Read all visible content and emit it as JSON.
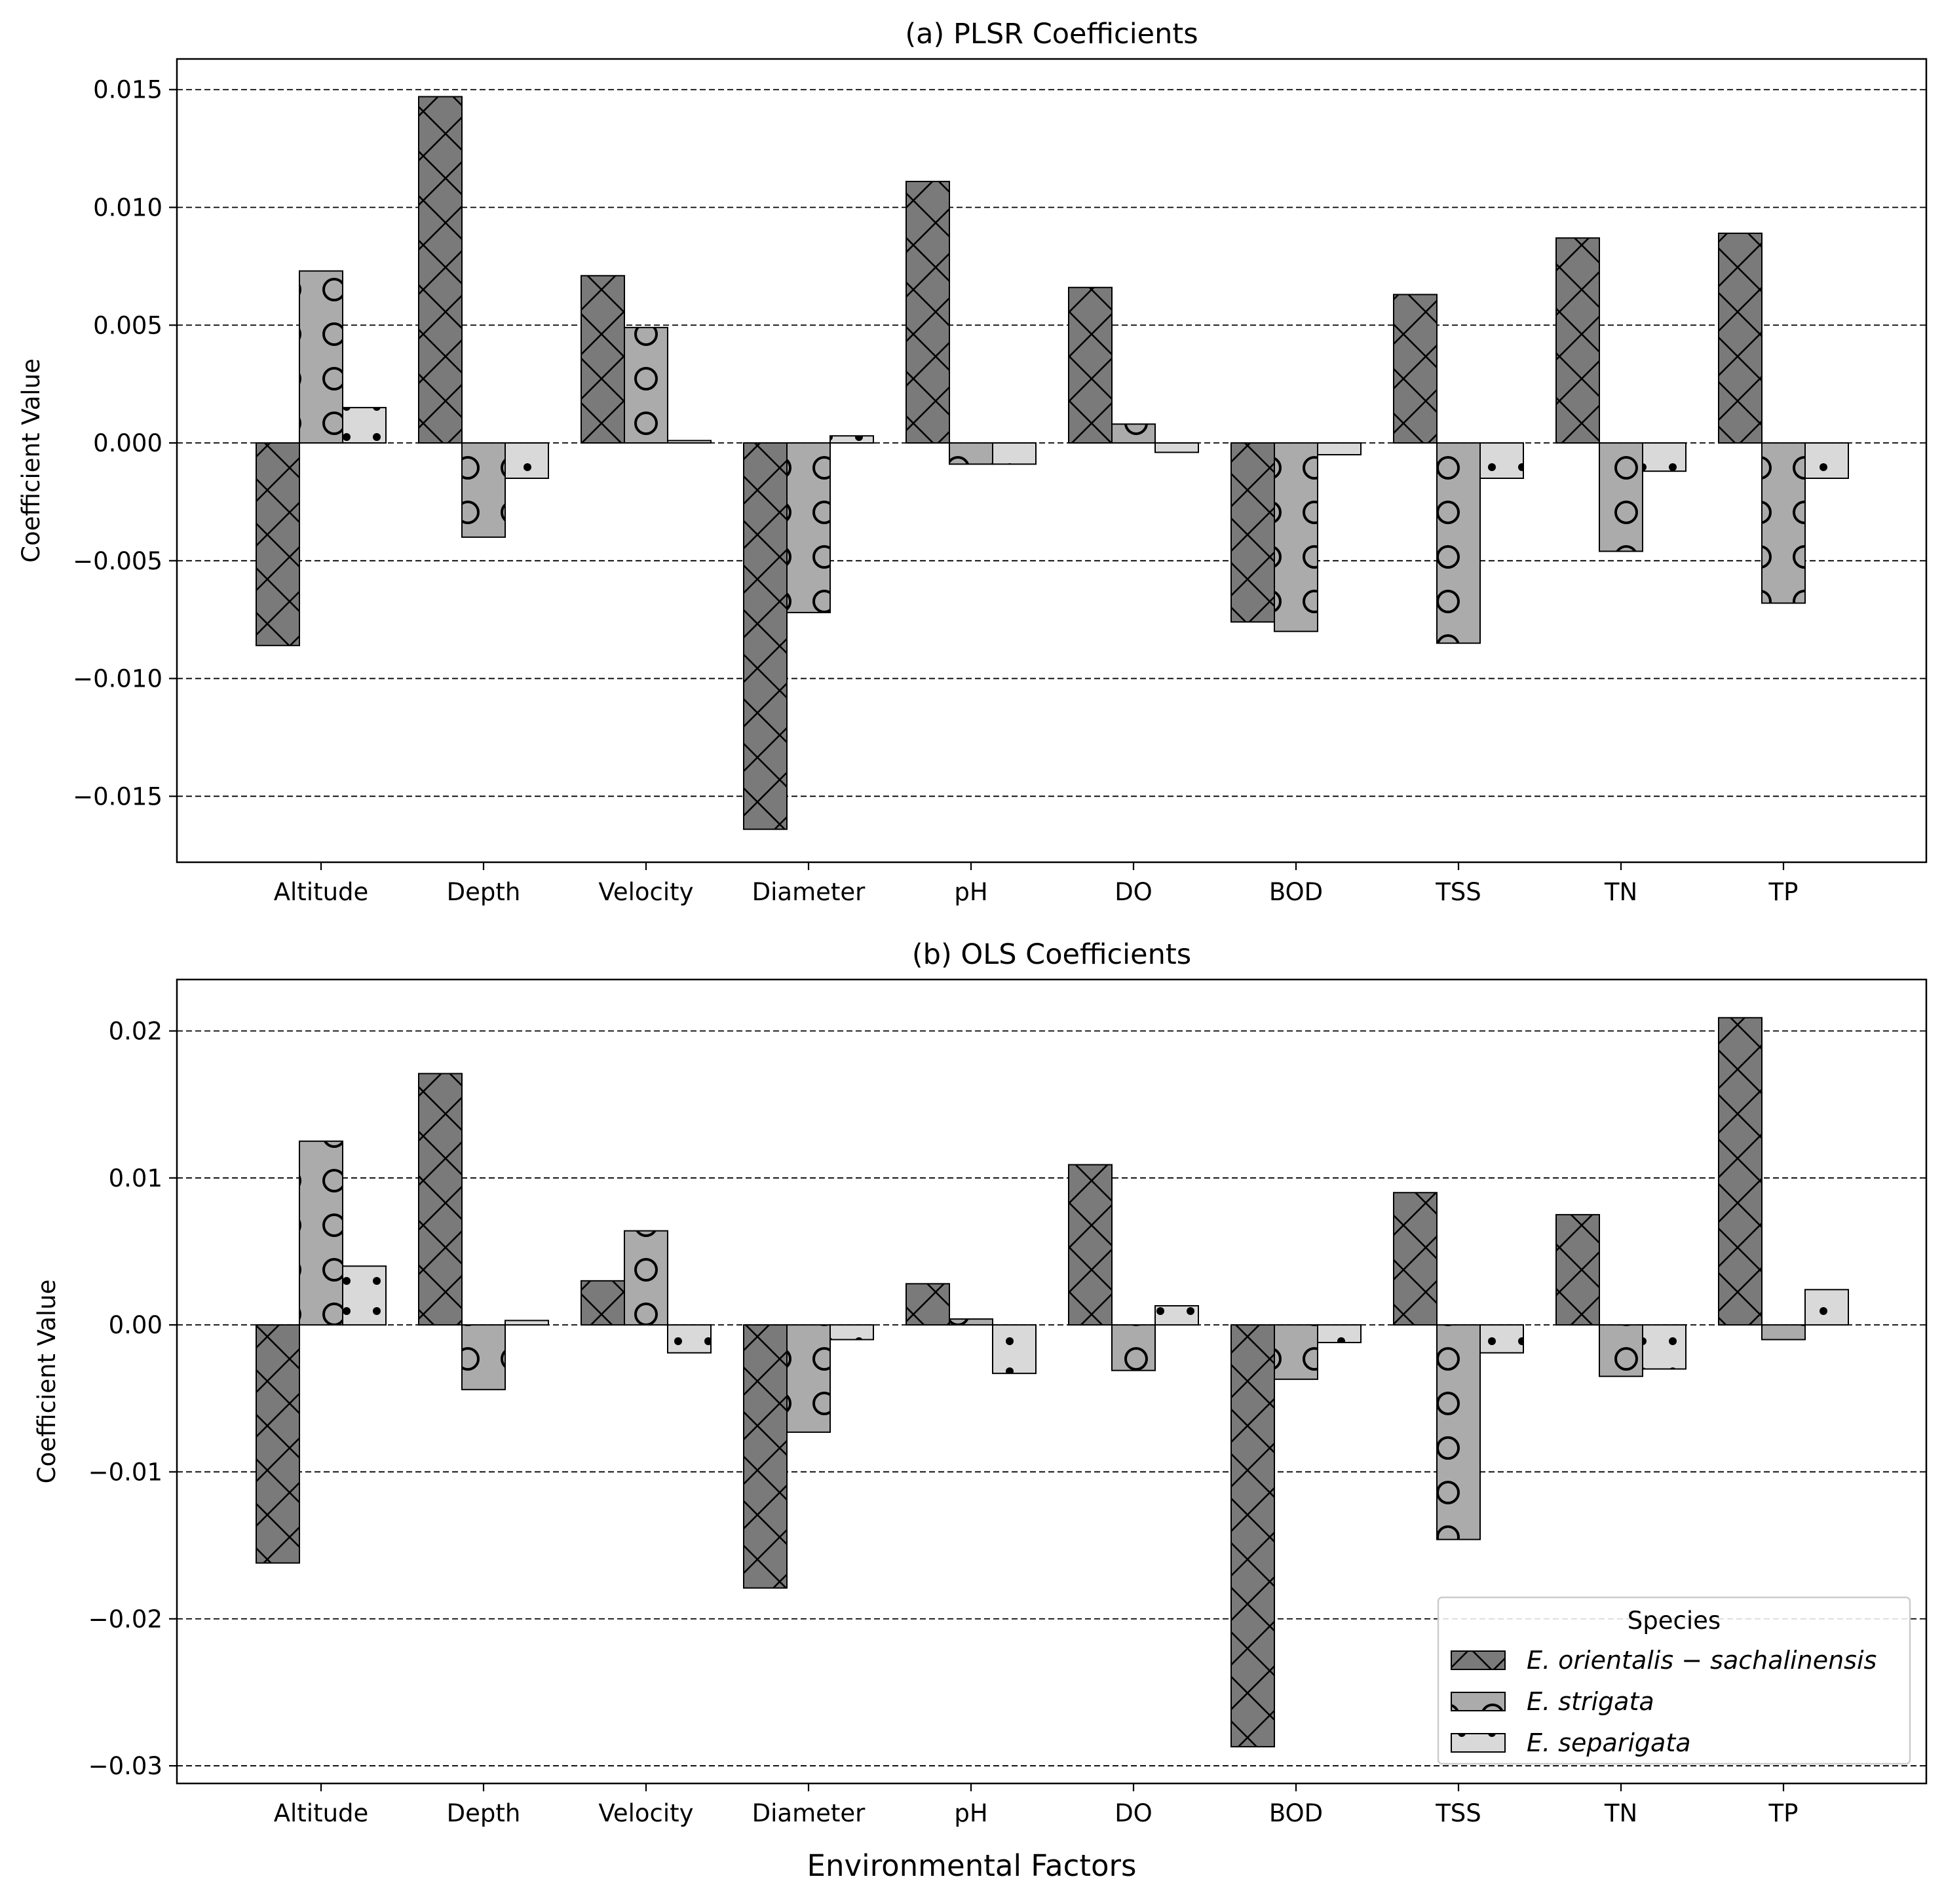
{
  "figure": {
    "xlabel": "Environmental Factors"
  },
  "colors": {
    "series": [
      "#7a7a7a",
      "#ababab",
      "#d9d9d9"
    ],
    "edge": "#000000",
    "grid": "#000000"
  },
  "legend": {
    "title": "Species",
    "entries": [
      "E. orientalis − sachalinensis",
      "E. strigata",
      "E. separigata"
    ],
    "placement": "lower-right"
  },
  "chart_data": [
    {
      "type": "bar",
      "title": "(a) PLSR Coefficients",
      "ylabel": "Coefficient Value",
      "categories": [
        "Altitude",
        "Depth",
        "Velocity",
        "Diameter",
        "pH",
        "DO",
        "BOD",
        "TSS",
        "TN",
        "TP"
      ],
      "ylim": [
        -0.0178,
        0.0163
      ],
      "yticks": [
        -0.015,
        -0.01,
        -0.005,
        0.0,
        0.005,
        0.01,
        0.015
      ],
      "yticklabels": [
        "−0.015",
        "−0.010",
        "−0.005",
        "0.000",
        "0.005",
        "0.010",
        "0.015"
      ],
      "grid": "horizontal dashed",
      "series": [
        {
          "name": "E. orientalis − sachalinensis",
          "hatch": "x",
          "values": [
            -0.0086,
            0.0147,
            0.0071,
            -0.0164,
            0.0111,
            0.0066,
            -0.0076,
            0.0063,
            0.0087,
            0.0089
          ]
        },
        {
          "name": "E. strigata",
          "hatch": "o",
          "values": [
            0.0073,
            -0.004,
            0.0049,
            -0.0072,
            -0.0009,
            0.0008,
            -0.008,
            -0.0085,
            -0.0046,
            -0.0068
          ]
        },
        {
          "name": "E. separigata",
          "hatch": "dot",
          "values": [
            0.0015,
            -0.0015,
            0.0001,
            0.0003,
            -0.0009,
            -0.0004,
            -0.0005,
            -0.0015,
            -0.0012,
            -0.0015
          ]
        }
      ]
    },
    {
      "type": "bar",
      "title": "(b) OLS Coefficients",
      "ylabel": "Coefficient Value",
      "categories": [
        "Altitude",
        "Depth",
        "Velocity",
        "Diameter",
        "pH",
        "DO",
        "BOD",
        "TSS",
        "TN",
        "TP"
      ],
      "ylim": [
        -0.0312,
        0.0235
      ],
      "yticks": [
        -0.03,
        -0.02,
        -0.01,
        0.0,
        0.01,
        0.02
      ],
      "yticklabels": [
        "−0.03",
        "−0.02",
        "−0.01",
        "0.00",
        "0.01",
        "0.02"
      ],
      "grid": "horizontal dashed",
      "series": [
        {
          "name": "E. orientalis − sachalinensis",
          "hatch": "x",
          "values": [
            -0.0162,
            0.0171,
            0.003,
            -0.0179,
            0.0028,
            0.0109,
            -0.0287,
            0.009,
            0.0075,
            0.0209
          ]
        },
        {
          "name": "E. strigata",
          "hatch": "o",
          "values": [
            0.0125,
            -0.0044,
            0.0064,
            -0.0073,
            0.0004,
            -0.0031,
            -0.0037,
            -0.0146,
            -0.0035,
            -0.001
          ]
        },
        {
          "name": "E. separigata",
          "hatch": "dot",
          "values": [
            0.004,
            0.0003,
            -0.0019,
            -0.001,
            -0.0033,
            0.0013,
            -0.0012,
            -0.0019,
            -0.003,
            0.0024
          ]
        }
      ]
    }
  ]
}
